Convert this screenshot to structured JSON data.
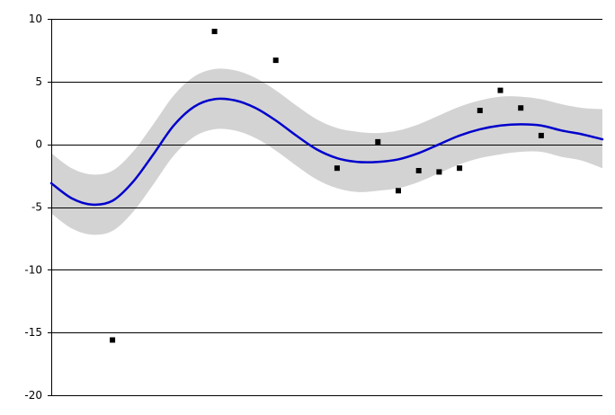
{
  "chart_data": {
    "type": "scatter",
    "title": "",
    "xlabel": "",
    "ylabel": "",
    "xlim": [
      0,
      27
    ],
    "ylim": [
      -20,
      10
    ],
    "yticks": [
      10,
      5,
      0,
      -5,
      -10,
      -15,
      -20
    ],
    "ytick_labels": [
      "10",
      "5",
      "0",
      "-5",
      "-10",
      "-15",
      "-20"
    ],
    "grid": "horizontal",
    "legend": "none",
    "colors": {
      "line": "#0000CC",
      "band": "#D3D3D3",
      "points": "#000000",
      "grid": "#000000",
      "axis": "#000000"
    },
    "observations": {
      "x": [
        3,
        8,
        11,
        14,
        16,
        17,
        18,
        19,
        20,
        21,
        22,
        23,
        24
      ],
      "y": [
        -15.6,
        9.0,
        6.7,
        -1.9,
        0.2,
        -3.7,
        -2.1,
        -2.2,
        -1.9,
        2.7,
        4.3,
        2.9,
        0.7
      ]
    },
    "fit": {
      "x": [
        0,
        1,
        2,
        3,
        4,
        5,
        6,
        7,
        8,
        9,
        10,
        11,
        12,
        13,
        14,
        15,
        16,
        17,
        18,
        19,
        20,
        21,
        22,
        23,
        24,
        25,
        26,
        27
      ],
      "mean": [
        -3.1,
        -4.3,
        -4.8,
        -4.5,
        -3.0,
        -0.8,
        1.5,
        3.0,
        3.6,
        3.5,
        2.9,
        1.9,
        0.7,
        -0.4,
        -1.1,
        -1.4,
        -1.4,
        -1.2,
        -0.7,
        0.0,
        0.7,
        1.2,
        1.5,
        1.6,
        1.5,
        1.1,
        0.8,
        0.4
      ],
      "upper": [
        -0.7,
        -1.9,
        -2.4,
        -2.1,
        -0.6,
        1.6,
        3.9,
        5.4,
        6.0,
        5.9,
        5.3,
        4.3,
        3.1,
        2.0,
        1.3,
        1.0,
        0.9,
        1.1,
        1.6,
        2.3,
        3.0,
        3.5,
        3.8,
        3.8,
        3.6,
        3.2,
        2.9,
        2.8
      ],
      "lower": [
        -5.5,
        -6.7,
        -7.2,
        -6.9,
        -5.4,
        -3.2,
        -0.9,
        0.6,
        1.2,
        1.1,
        0.5,
        -0.5,
        -1.7,
        -2.8,
        -3.5,
        -3.8,
        -3.7,
        -3.5,
        -3.0,
        -2.3,
        -1.6,
        -1.1,
        -0.8,
        -0.6,
        -0.6,
        -1.0,
        -1.3,
        -1.9
      ]
    }
  }
}
